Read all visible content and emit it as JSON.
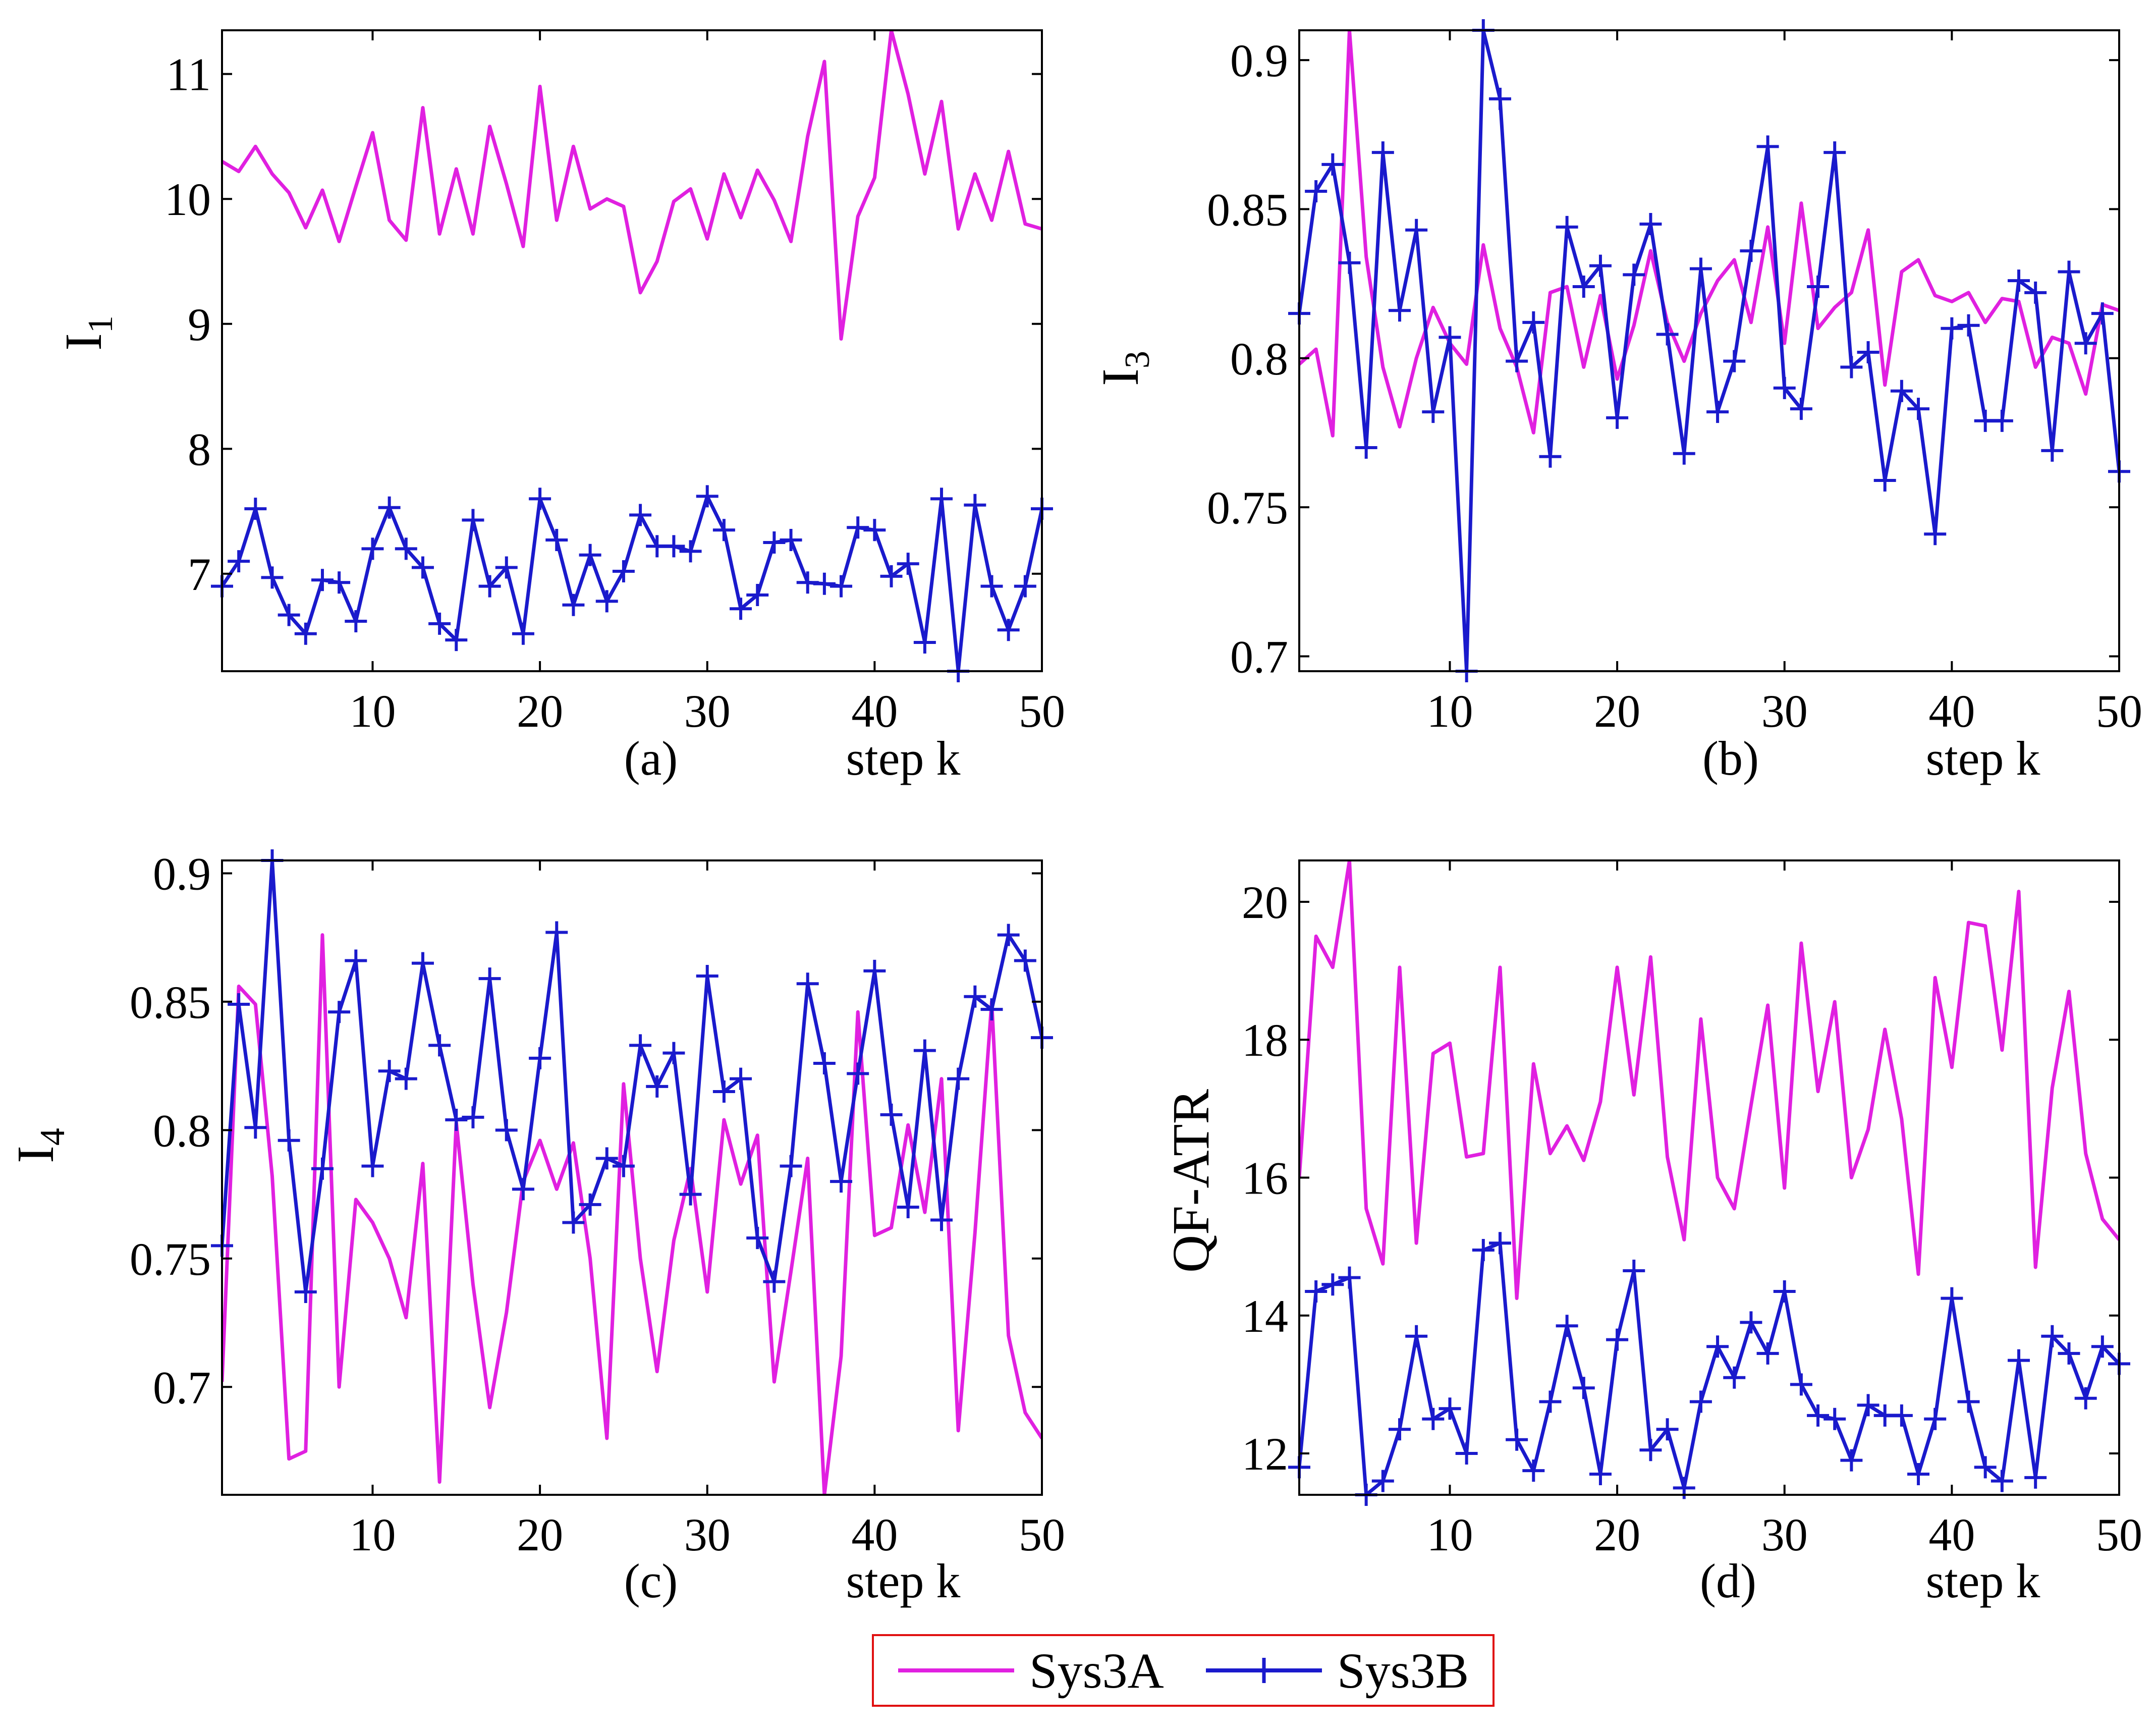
{
  "chart_data": [
    {
      "id": "a",
      "type": "line",
      "caption": "(a)",
      "xlabel": "step k",
      "ylabel": {
        "main": "I",
        "sub": "1"
      },
      "xlim": [
        1,
        50
      ],
      "ylim": [
        6.22,
        11.35
      ],
      "xticks": [
        "10",
        "20",
        "30",
        "40",
        "50"
      ],
      "yticks": [
        "7",
        "8",
        "9",
        "10",
        "11"
      ],
      "x": [
        1,
        2,
        3,
        4,
        5,
        6,
        7,
        8,
        9,
        10,
        11,
        12,
        13,
        14,
        15,
        16,
        17,
        18,
        19,
        20,
        21,
        22,
        23,
        24,
        25,
        26,
        27,
        28,
        29,
        30,
        31,
        32,
        33,
        34,
        35,
        36,
        37,
        38,
        39,
        40,
        41,
        42,
        43,
        44,
        45,
        46,
        47,
        48,
        49,
        50
      ],
      "series": [
        {
          "name": "Sys3A",
          "color": "#e020e0",
          "marker": "none",
          "values": [
            10.3,
            10.22,
            10.42,
            10.2,
            10.05,
            9.77,
            10.07,
            9.66,
            10.1,
            10.53,
            9.83,
            9.67,
            10.73,
            9.72,
            10.24,
            9.72,
            10.58,
            10.12,
            9.62,
            10.9,
            9.83,
            10.42,
            9.92,
            10.0,
            9.94,
            9.25,
            9.5,
            9.98,
            10.08,
            9.68,
            10.2,
            9.85,
            10.23,
            9.99,
            9.66,
            10.5,
            11.1,
            8.88,
            9.86,
            10.17,
            11.35,
            10.84,
            10.2,
            10.78,
            9.76,
            10.2,
            9.83,
            10.38,
            9.8,
            9.76
          ]
        },
        {
          "name": "Sys3B",
          "color": "#1a1acc",
          "marker": "+",
          "values": [
            6.9,
            7.1,
            7.52,
            6.97,
            6.67,
            6.52,
            6.95,
            6.93,
            6.62,
            7.2,
            7.53,
            7.2,
            7.05,
            6.6,
            6.47,
            7.43,
            6.9,
            7.05,
            6.52,
            7.6,
            7.27,
            6.75,
            7.15,
            6.78,
            7.02,
            7.47,
            7.22,
            7.22,
            7.18,
            7.62,
            7.35,
            6.72,
            6.83,
            7.25,
            7.27,
            6.93,
            6.92,
            6.9,
            7.37,
            7.35,
            6.98,
            7.08,
            6.45,
            7.6,
            6.22,
            7.55,
            6.9,
            6.55,
            6.9,
            7.52
          ]
        }
      ]
    },
    {
      "id": "b",
      "type": "line",
      "caption": "(b)",
      "xlabel": "step k",
      "ylabel": {
        "main": "I",
        "sub": "3"
      },
      "xlim": [
        1,
        50
      ],
      "ylim": [
        0.695,
        0.91
      ],
      "xticks": [
        "10",
        "20",
        "30",
        "40",
        "50"
      ],
      "yticks": [
        "0.7",
        "0.75",
        "0.8",
        "0.85",
        "0.9"
      ],
      "x": [
        1,
        2,
        3,
        4,
        5,
        6,
        7,
        8,
        9,
        10,
        11,
        12,
        13,
        14,
        15,
        16,
        17,
        18,
        19,
        20,
        21,
        22,
        23,
        24,
        25,
        26,
        27,
        28,
        29,
        30,
        31,
        32,
        33,
        34,
        35,
        36,
        37,
        38,
        39,
        40,
        41,
        42,
        43,
        44,
        45,
        46,
        47,
        48,
        49,
        50
      ],
      "series": [
        {
          "name": "Sys3A",
          "color": "#e020e0",
          "marker": "none",
          "values": [
            0.798,
            0.803,
            0.774,
            0.91,
            0.834,
            0.797,
            0.777,
            0.8,
            0.817,
            0.805,
            0.798,
            0.838,
            0.81,
            0.797,
            0.775,
            0.822,
            0.824,
            0.797,
            0.821,
            0.793,
            0.811,
            0.836,
            0.812,
            0.799,
            0.815,
            0.826,
            0.833,
            0.812,
            0.844,
            0.805,
            0.852,
            0.81,
            0.817,
            0.822,
            0.843,
            0.791,
            0.829,
            0.833,
            0.821,
            0.819,
            0.822,
            0.812,
            0.82,
            0.819,
            0.797,
            0.807,
            0.805,
            0.788,
            0.818,
            0.816
          ]
        },
        {
          "name": "Sys3B",
          "color": "#1a1acc",
          "marker": "+",
          "values": [
            0.815,
            0.856,
            0.865,
            0.832,
            0.77,
            0.869,
            0.816,
            0.843,
            0.782,
            0.807,
            0.695,
            0.91,
            0.887,
            0.799,
            0.812,
            0.767,
            0.844,
            0.824,
            0.831,
            0.78,
            0.828,
            0.845,
            0.808,
            0.768,
            0.83,
            0.782,
            0.799,
            0.836,
            0.871,
            0.79,
            0.783,
            0.824,
            0.869,
            0.797,
            0.802,
            0.759,
            0.789,
            0.783,
            0.741,
            0.81,
            0.811,
            0.779,
            0.779,
            0.826,
            0.822,
            0.769,
            0.829,
            0.805,
            0.815,
            0.762
          ]
        }
      ]
    },
    {
      "id": "c",
      "type": "line",
      "caption": "(c)",
      "xlabel": "step k",
      "ylabel": {
        "main": "I",
        "sub": "4"
      },
      "xlim": [
        1,
        50
      ],
      "ylim": [
        0.658,
        0.905
      ],
      "xticks": [
        "10",
        "20",
        "30",
        "40",
        "50"
      ],
      "yticks": [
        "0.7",
        "0.75",
        "0.8",
        "0.85",
        "0.9"
      ],
      "x": [
        1,
        2,
        3,
        4,
        5,
        6,
        7,
        8,
        9,
        10,
        11,
        12,
        13,
        14,
        15,
        16,
        17,
        18,
        19,
        20,
        21,
        22,
        23,
        24,
        25,
        26,
        27,
        28,
        29,
        30,
        31,
        32,
        33,
        34,
        35,
        36,
        37,
        38,
        39,
        40,
        41,
        42,
        43,
        44,
        45,
        46,
        47,
        48,
        49,
        50
      ],
      "series": [
        {
          "name": "Sys3A",
          "color": "#e020e0",
          "marker": "none",
          "values": [
            0.702,
            0.856,
            0.849,
            0.782,
            0.672,
            0.675,
            0.876,
            0.7,
            0.773,
            0.764,
            0.75,
            0.727,
            0.787,
            0.663,
            0.803,
            0.74,
            0.692,
            0.729,
            0.78,
            0.796,
            0.777,
            0.795,
            0.75,
            0.68,
            0.818,
            0.75,
            0.706,
            0.757,
            0.785,
            0.737,
            0.804,
            0.779,
            0.798,
            0.702,
            0.745,
            0.789,
            0.658,
            0.712,
            0.846,
            0.759,
            0.762,
            0.802,
            0.768,
            0.82,
            0.683,
            0.76,
            0.85,
            0.72,
            0.69,
            0.68
          ]
        },
        {
          "name": "Sys3B",
          "color": "#1a1acc",
          "marker": "+",
          "values": [
            0.755,
            0.849,
            0.801,
            0.905,
            0.796,
            0.737,
            0.785,
            0.846,
            0.866,
            0.786,
            0.823,
            0.82,
            0.865,
            0.833,
            0.804,
            0.805,
            0.859,
            0.8,
            0.777,
            0.828,
            0.877,
            0.764,
            0.771,
            0.789,
            0.786,
            0.833,
            0.817,
            0.83,
            0.775,
            0.86,
            0.815,
            0.82,
            0.758,
            0.741,
            0.786,
            0.857,
            0.826,
            0.78,
            0.822,
            0.862,
            0.806,
            0.77,
            0.831,
            0.765,
            0.82,
            0.852,
            0.847,
            0.876,
            0.866,
            0.836
          ]
        }
      ]
    },
    {
      "id": "d",
      "type": "line",
      "caption": "(d)",
      "xlabel": "step k",
      "ylabel": {
        "main": "QF-ATR",
        "sub": ""
      },
      "xlim": [
        1,
        50
      ],
      "ylim": [
        11.4,
        20.6
      ],
      "xticks": [
        "10",
        "20",
        "30",
        "40",
        "50"
      ],
      "yticks": [
        "12",
        "14",
        "16",
        "18",
        "20"
      ],
      "x": [
        1,
        2,
        3,
        4,
        5,
        6,
        7,
        8,
        9,
        10,
        11,
        12,
        13,
        14,
        15,
        16,
        17,
        18,
        19,
        20,
        21,
        22,
        23,
        24,
        25,
        26,
        27,
        28,
        29,
        30,
        31,
        32,
        33,
        34,
        35,
        36,
        37,
        38,
        39,
        40,
        41,
        42,
        43,
        44,
        45,
        46,
        47,
        48,
        49,
        50
      ],
      "series": [
        {
          "name": "Sys3A",
          "color": "#e020e0",
          "marker": "none",
          "values": [
            16.0,
            19.5,
            19.05,
            20.6,
            15.55,
            14.75,
            19.05,
            15.05,
            17.8,
            17.95,
            16.3,
            16.35,
            19.05,
            14.25,
            17.65,
            16.35,
            16.75,
            16.25,
            17.1,
            19.05,
            17.2,
            19.2,
            16.3,
            15.1,
            18.3,
            16.0,
            15.55,
            17.05,
            18.5,
            15.85,
            19.4,
            17.25,
            18.55,
            16.0,
            16.7,
            18.15,
            16.85,
            14.6,
            18.9,
            17.6,
            19.7,
            19.65,
            17.85,
            20.15,
            14.7,
            17.3,
            18.7,
            16.35,
            15.4,
            15.1
          ]
        },
        {
          "name": "Sys3B",
          "color": "#1a1acc",
          "marker": "+",
          "values": [
            11.8,
            14.35,
            14.45,
            14.55,
            11.4,
            11.6,
            12.35,
            13.7,
            12.5,
            12.65,
            12.0,
            14.95,
            15.05,
            12.2,
            11.75,
            12.75,
            13.85,
            12.95,
            11.7,
            13.65,
            14.65,
            12.05,
            12.35,
            11.5,
            12.75,
            13.55,
            13.1,
            13.9,
            13.45,
            14.35,
            13.0,
            12.55,
            12.5,
            11.9,
            12.7,
            12.55,
            12.55,
            11.7,
            12.5,
            14.25,
            12.75,
            11.8,
            11.6,
            13.35,
            11.65,
            13.7,
            13.45,
            12.8,
            13.55,
            13.3
          ]
        }
      ]
    }
  ],
  "legend": {
    "items": [
      {
        "label": "Sys3A",
        "color": "#e020e0",
        "marker": "none"
      },
      {
        "label": "Sys3B",
        "color": "#1a1acc",
        "marker": "+"
      }
    ],
    "border_color": "#e01010"
  }
}
